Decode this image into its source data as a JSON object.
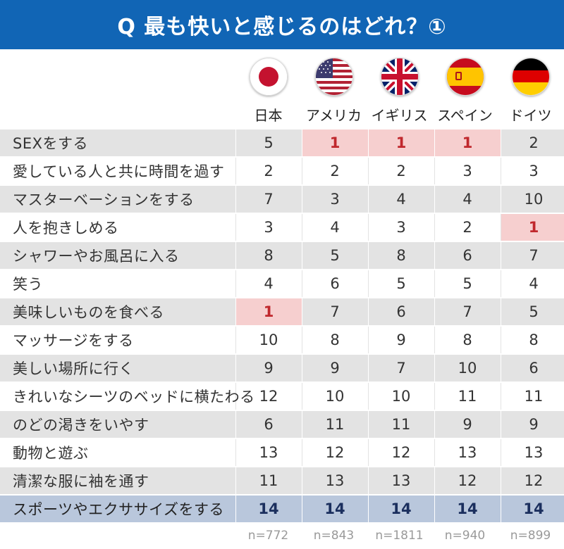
{
  "title": "Q 最も快いと感じるのはどれ？①",
  "countries": [
    {
      "name": "日本",
      "icon": "japan-flag-icon"
    },
    {
      "name": "アメリカ",
      "icon": "usa-flag-icon"
    },
    {
      "name": "イギリス",
      "icon": "uk-flag-icon"
    },
    {
      "name": "スペイン",
      "icon": "spain-flag-icon"
    },
    {
      "name": "ドイツ",
      "icon": "germany-flag-icon"
    }
  ],
  "rows": [
    {
      "label": "SEXをする",
      "values": [
        "5",
        "1",
        "1",
        "1",
        "2"
      ]
    },
    {
      "label": "愛している人と共に時間を過す",
      "values": [
        "2",
        "2",
        "2",
        "3",
        "3"
      ]
    },
    {
      "label": "マスターベーションをする",
      "values": [
        "7",
        "3",
        "4",
        "4",
        "10"
      ]
    },
    {
      "label": "人を抱きしめる",
      "values": [
        "3",
        "4",
        "3",
        "2",
        "1"
      ]
    },
    {
      "label": "シャワーやお風呂に入る",
      "values": [
        "8",
        "5",
        "8",
        "6",
        "7"
      ]
    },
    {
      "label": "笑う",
      "values": [
        "4",
        "6",
        "5",
        "5",
        "4"
      ]
    },
    {
      "label": "美味しいものを食べる",
      "values": [
        "1",
        "7",
        "6",
        "7",
        "5"
      ]
    },
    {
      "label": "マッサージをする",
      "values": [
        "10",
        "8",
        "9",
        "8",
        "8"
      ]
    },
    {
      "label": "美しい場所に行く",
      "values": [
        "9",
        "9",
        "7",
        "10",
        "6"
      ]
    },
    {
      "label": "きれいなシーツのベッドに横たわる",
      "values": [
        "12",
        "10",
        "10",
        "11",
        "11"
      ]
    },
    {
      "label": "のどの渇きをいやす",
      "values": [
        "6",
        "11",
        "11",
        "9",
        "9"
      ]
    },
    {
      "label": "動物と遊ぶ",
      "values": [
        "13",
        "12",
        "12",
        "13",
        "13"
      ]
    },
    {
      "label": "清潔な服に袖を通す",
      "values": [
        "11",
        "13",
        "13",
        "12",
        "12"
      ]
    },
    {
      "label": "スポーツやエクササイズをする",
      "values": [
        "14",
        "14",
        "14",
        "14",
        "14"
      ]
    }
  ],
  "sample_sizes": [
    "n=772",
    "n=843",
    "n=1811",
    "n=940",
    "n=899"
  ],
  "colors": {
    "title_bg": "#1165b5",
    "rank1_bg": "#f6cfcf",
    "rank1_text": "#c0282d",
    "last_row_bg": "#b9c7dc",
    "stripe_bg": "#e3e3e3"
  }
}
